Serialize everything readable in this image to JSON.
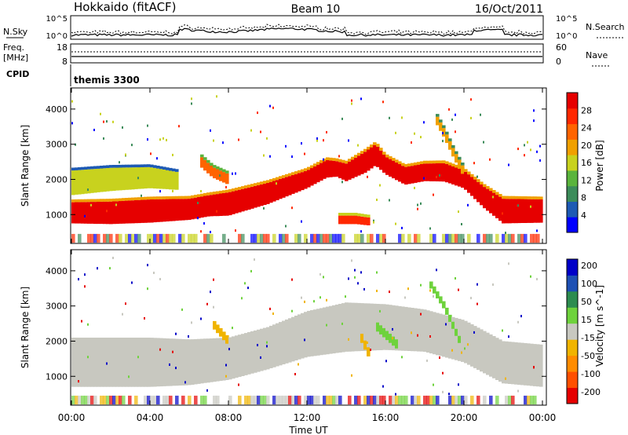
{
  "header": {
    "radar": "Hokkaido (fitACF)",
    "beam": "Beam 10",
    "date": "16/Oct/2011"
  },
  "top_panels": {
    "nsky_label": "N.Sky",
    "nsky_ticks": [
      "10^5",
      "10^0"
    ],
    "nsearch_label": "N.Search",
    "nsearch_ticks": [
      "10^5",
      "10^0"
    ],
    "freq_label": "Freq.",
    "freq_unit": "[MHz]",
    "freq_ticks": [
      "18",
      "8"
    ],
    "nave_label": "Nave",
    "nave_ticks": [
      "60",
      "0"
    ],
    "cpid_label": "CPID",
    "cpid_value": "themis 3300"
  },
  "x_axis": {
    "label": "Time UT",
    "ticks": [
      "00:00",
      "04:00",
      "08:00",
      "12:00",
      "16:00",
      "20:00",
      "00:00"
    ]
  },
  "colors": {
    "power_scale": [
      "#0000ff",
      "#1e5ab4",
      "#3c8c5a",
      "#5ab43c",
      "#c8d21e",
      "#f0a000",
      "#ff6400",
      "#ff2800",
      "#e60000"
    ],
    "velocity_scale": [
      "#0000c8",
      "#1e50b4",
      "#2d8c50",
      "#6ed23c",
      "#c8c8c0",
      "#f0b400",
      "#ff8c00",
      "#ff5000",
      "#e60000"
    ]
  },
  "chart_data": [
    {
      "type": "heatmap",
      "title": "",
      "xlabel": "",
      "ylabel": "Slant Range [km]",
      "xlim": [
        0,
        24
      ],
      "ylim": [
        180,
        4600
      ],
      "yticks": [
        "1000",
        "2000",
        "3000",
        "4000"
      ],
      "colorbar": {
        "label": "Power [dB]",
        "ticks": [
          "4",
          "8",
          "12",
          "16",
          "20",
          "24",
          "28"
        ],
        "range": [
          0,
          30
        ]
      },
      "echo_bands": [
        {
          "name": "main",
          "t": [
            0,
            2,
            4,
            6,
            7,
            8,
            10,
            12,
            13,
            13.5,
            14,
            15,
            15.5,
            16,
            17,
            18,
            19,
            20,
            21,
            22,
            24
          ],
          "center": [
            1050,
            1050,
            1100,
            1150,
            1250,
            1300,
            1600,
            2000,
            2300,
            2300,
            2200,
            2500,
            2700,
            2400,
            2100,
            2200,
            2200,
            2000,
            1500,
            1100,
            1100
          ],
          "half": [
            300,
            320,
            330,
            300,
            300,
            330,
            300,
            250,
            250,
            220,
            250,
            300,
            300,
            250,
            250,
            250,
            260,
            250,
            300,
            350,
            330
          ],
          "val": 28
        },
        {
          "name": "upper-green",
          "t": [
            0,
            2,
            4,
            5.5
          ],
          "center": [
            1900,
            2000,
            2050,
            1950
          ],
          "half": [
            350,
            330,
            300,
            250
          ],
          "val": 14
        },
        {
          "name": "branch-8h",
          "t": [
            6.6,
            7.2,
            8.0
          ],
          "center": [
            2500,
            2200,
            2000
          ],
          "half": [
            150,
            150,
            150
          ],
          "val": 21
        },
        {
          "name": "branch-18h",
          "t": [
            18.5,
            19,
            19.5,
            20
          ],
          "center": [
            3800,
            3300,
            2700,
            2200
          ],
          "half": [
            120,
            120,
            120,
            120
          ],
          "val": 18
        },
        {
          "name": "patch-14h",
          "t": [
            13.6,
            14.5,
            15.2
          ],
          "center": [
            850,
            850,
            800
          ],
          "half": [
            120,
            120,
            110
          ],
          "val": 24
        }
      ]
    },
    {
      "type": "heatmap",
      "title": "",
      "xlabel": "Time UT",
      "ylabel": "Slant Range [km]",
      "xlim": [
        0,
        24
      ],
      "ylim": [
        180,
        4600
      ],
      "yticks": [
        "1000",
        "2000",
        "3000",
        "4000"
      ],
      "colorbar": {
        "label": "Velocity [m s^-1]",
        "ticks": [
          "200",
          "100",
          "50",
          "15",
          "-15",
          "-50",
          "-100",
          "-200"
        ],
        "range": [
          -250,
          250
        ]
      },
      "echo_bands": [
        {
          "name": "main-grey",
          "t": [
            0,
            4,
            6,
            8,
            10,
            12,
            14,
            16,
            18,
            20,
            22,
            24
          ],
          "center": [
            1400,
            1400,
            1400,
            1500,
            1800,
            2200,
            2400,
            2400,
            2300,
            2000,
            1400,
            1300
          ],
          "half": [
            700,
            700,
            650,
            600,
            600,
            650,
            700,
            650,
            600,
            600,
            600,
            600
          ],
          "val": 0
        },
        {
          "name": "green-streak",
          "t": [
            18.2,
            19.0,
            19.8
          ],
          "center": [
            3700,
            3000,
            2000
          ],
          "half": [
            100,
            100,
            100
          ],
          "val": 60
        },
        {
          "name": "green-16h",
          "t": [
            15.6,
            16.6
          ],
          "center": [
            2400,
            1900
          ],
          "half": [
            130,
            130
          ],
          "val": 60
        },
        {
          "name": "orange-8h",
          "t": [
            7.2,
            8.0
          ],
          "center": [
            2500,
            2000
          ],
          "half": [
            120,
            120
          ],
          "val": -60
        },
        {
          "name": "orange-15h",
          "t": [
            14.7,
            15.2
          ],
          "center": [
            2200,
            1600
          ],
          "half": [
            130,
            130
          ],
          "val": -60
        }
      ]
    }
  ]
}
